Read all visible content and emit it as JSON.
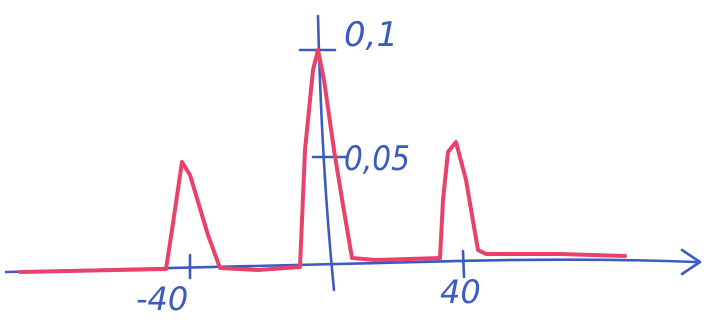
{
  "colors": {
    "axis": "#3d5bbf",
    "curve": "#e8426a",
    "background": "#ffffff"
  },
  "labels": {
    "y_top": "0,1",
    "y_mid": "0,05",
    "x_left": "-40",
    "x_right": "40"
  },
  "chart_data": {
    "type": "line",
    "x_ticks": [
      -40,
      40
    ],
    "y_ticks": [
      0.05,
      0.1
    ],
    "series": [
      {
        "x": [
          -60,
          -45,
          -40,
          -36,
          -31,
          -25,
          -8,
          -3,
          0,
          3,
          8,
          25,
          31,
          35,
          40,
          45,
          60
        ],
        "y": [
          0,
          0,
          0.05,
          0.03,
          0,
          0,
          0,
          0.095,
          0.1,
          0.07,
          0,
          0,
          0.05,
          0.05,
          0.025,
          0,
          0
        ]
      }
    ],
    "grid": false
  }
}
